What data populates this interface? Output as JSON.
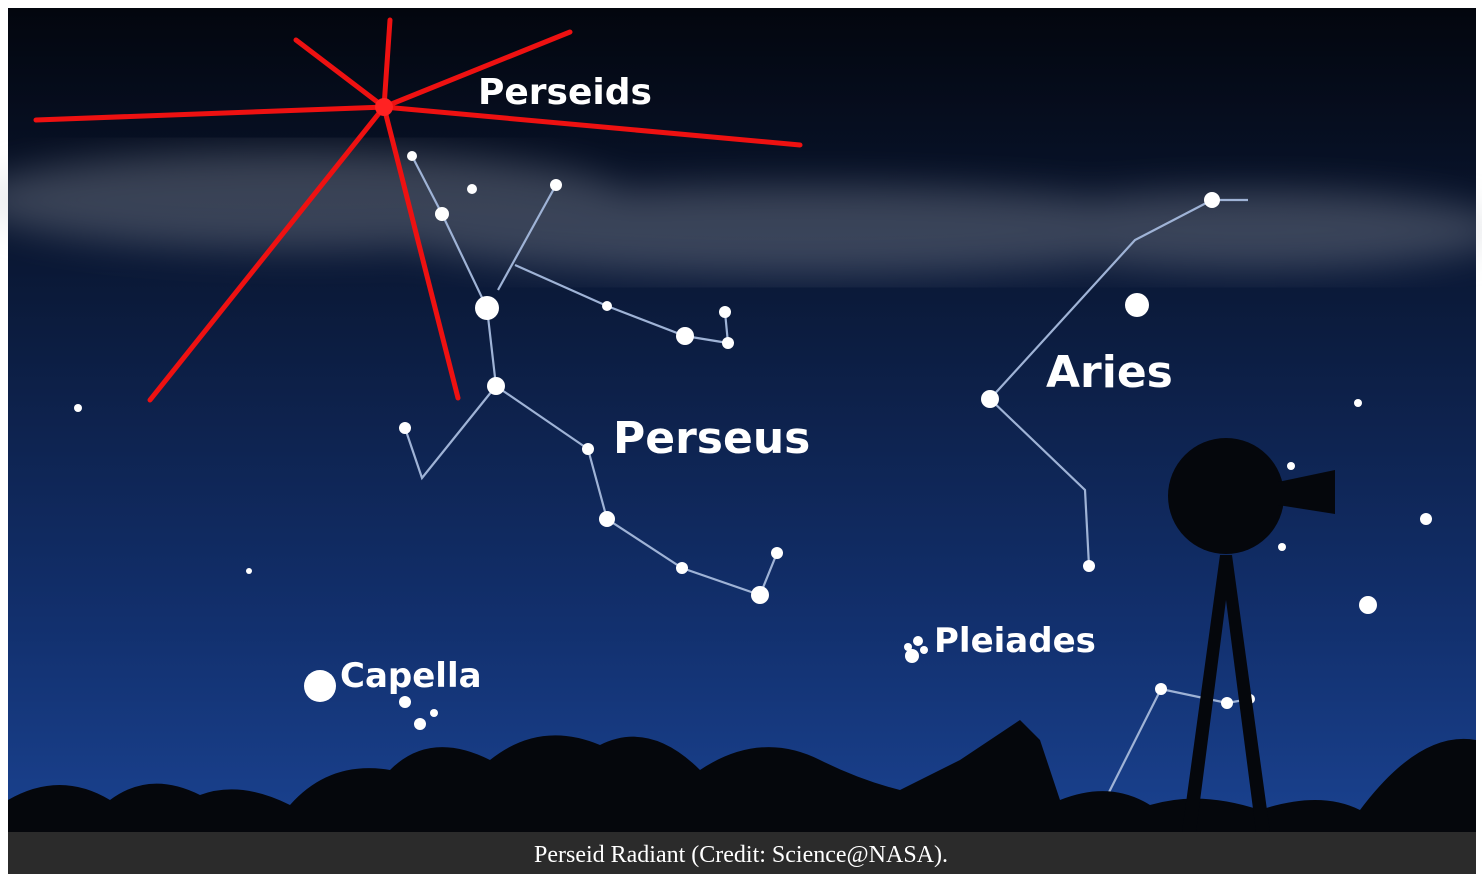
{
  "labels": {
    "perseids": "Perseids",
    "perseus": "Perseus",
    "aries": "Aries",
    "pleiades": "Pleiades",
    "capella": "Capella"
  },
  "caption": "Perseid Radiant (Credit: Science@NASA)."
}
